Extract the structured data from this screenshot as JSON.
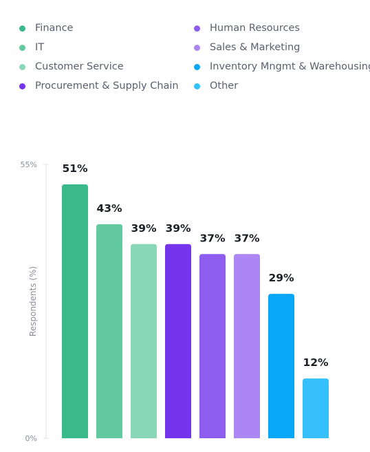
{
  "chart_data": {
    "type": "bar",
    "categories": [
      "Finance",
      "IT",
      "Customer Service",
      "Procurement & Supply Chain",
      "Human Resources",
      "Sales & Marketing",
      "Inventory Mngmt & Warehousing",
      "Other"
    ],
    "values": [
      51,
      43,
      39,
      39,
      37,
      37,
      29,
      12
    ],
    "data_labels": [
      "51%",
      "43%",
      "39%",
      "39%",
      "37%",
      "37%",
      "29%",
      "12%"
    ],
    "colors": [
      "#3aba8a",
      "#62c9a0",
      "#8ad7b8",
      "#7535ec",
      "#8d5df0",
      "#ab86f4",
      "#0aa6f7",
      "#35c0fb"
    ],
    "ylabel": "Respondents (%)",
    "ylim": [
      0,
      55
    ],
    "yticks": [
      {
        "value": 55,
        "label": "55%"
      },
      {
        "value": 0,
        "label": "0%"
      }
    ],
    "legend_position": "top",
    "grid": false
  }
}
